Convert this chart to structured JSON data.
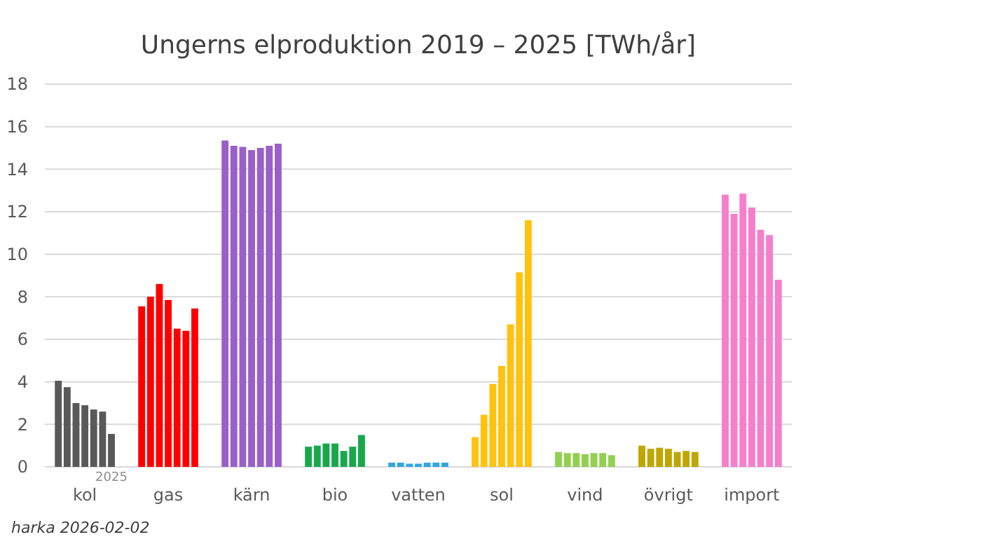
{
  "chart_data": {
    "type": "bar",
    "title": "Ungerns elproduktion 2019 – 2025 [TWh/år]",
    "categories": [
      "kol",
      "gas",
      "kärn",
      "bio",
      "vatten",
      "sol",
      "vind",
      "övrigt",
      "import"
    ],
    "series": [
      {
        "colors": [
          "#595959",
          "#ff0000",
          "#9a5fc9",
          "#17a84c",
          "#2ea7e0",
          "#ffc20e",
          "#92d050",
          "#bfa600",
          "#f57fcc"
        ],
        "values": [
          4.05,
          7.55,
          15.35,
          0.95,
          0.2,
          1.4,
          0.7,
          1.0,
          12.8
        ]
      },
      {
        "colors": [
          "#595959",
          "#ff0000",
          "#9a5fc9",
          "#17a84c",
          "#2ea7e0",
          "#ffc20e",
          "#92d050",
          "#bfa600",
          "#f57fcc"
        ],
        "values": [
          3.75,
          8.0,
          15.1,
          1.0,
          0.2,
          2.45,
          0.65,
          0.85,
          11.9
        ]
      },
      {
        "colors": [
          "#595959",
          "#ff0000",
          "#9a5fc9",
          "#17a84c",
          "#2ea7e0",
          "#ffc20e",
          "#92d050",
          "#bfa600",
          "#f57fcc"
        ],
        "values": [
          3.0,
          8.6,
          15.05,
          1.1,
          0.15,
          3.9,
          0.65,
          0.9,
          12.85
        ]
      },
      {
        "colors": [
          "#595959",
          "#ff0000",
          "#9a5fc9",
          "#17a84c",
          "#2ea7e0",
          "#ffc20e",
          "#92d050",
          "#bfa600",
          "#f57fcc"
        ],
        "values": [
          2.9,
          7.85,
          14.9,
          1.1,
          0.15,
          4.75,
          0.6,
          0.85,
          12.2
        ]
      },
      {
        "colors": [
          "#595959",
          "#ff0000",
          "#9a5fc9",
          "#17a84c",
          "#2ea7e0",
          "#ffc20e",
          "#92d050",
          "#bfa600",
          "#f57fcc"
        ],
        "values": [
          2.7,
          6.5,
          15.0,
          0.75,
          0.2,
          6.7,
          0.65,
          0.7,
          11.15
        ]
      },
      {
        "colors": [
          "#595959",
          "#ff0000",
          "#9a5fc9",
          "#17a84c",
          "#2ea7e0",
          "#ffc20e",
          "#92d050",
          "#bfa600",
          "#f57fcc"
        ],
        "values": [
          2.6,
          6.4,
          15.1,
          0.95,
          0.2,
          9.15,
          0.65,
          0.75,
          10.9
        ]
      },
      {
        "colors": [
          "#595959",
          "#ff0000",
          "#9a5fc9",
          "#17a84c",
          "#2ea7e0",
          "#ffc20e",
          "#92d050",
          "#bfa600",
          "#f57fcc"
        ],
        "values": [
          1.55,
          7.45,
          15.2,
          1.5,
          0.2,
          11.6,
          0.55,
          0.7,
          8.8
        ]
      }
    ],
    "ylim": [
      0,
      18
    ],
    "yticks": [
      0,
      2,
      4,
      6,
      8,
      10,
      12,
      14,
      16,
      18
    ],
    "grid": "y",
    "annotations": [
      "2025",
      "harka 2026-02-02"
    ]
  }
}
